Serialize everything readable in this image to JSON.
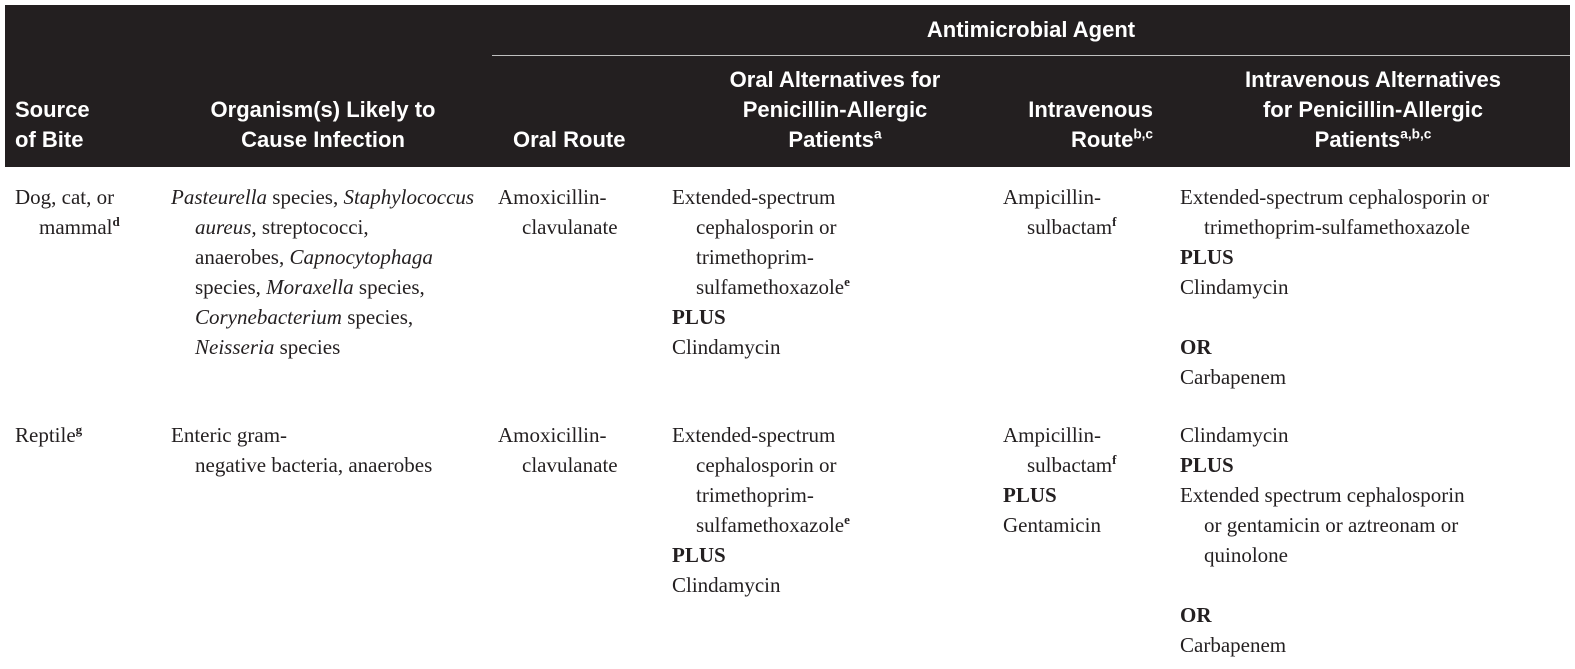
{
  "header": {
    "span_title": "Antimicrobial Agent",
    "source_line1": "Source",
    "source_line2": "of Bite",
    "organism_line1": "Organism(s) Likely to",
    "organism_line2": "Cause Infection",
    "oral_route": "Oral Route",
    "oral_alt_line1": "Oral Alternatives for",
    "oral_alt_line2": "Penicillin-Allergic",
    "oral_alt_line3": "Patients",
    "oral_alt_sup": "a",
    "iv_line1": "Intravenous",
    "iv_line2": "Route",
    "iv_sup": "b,c",
    "iv_alt_line1": "Intravenous Alternatives",
    "iv_alt_line2": "for Penicillin-Allergic",
    "iv_alt_line3": "Patients",
    "iv_alt_sup": "a,b,c"
  },
  "rows": [
    {
      "source_line1": "Dog, cat, or",
      "source_line2": "mammal",
      "source_sup": "d",
      "organisms": {
        "t1": "Pasteurella",
        "t2": " species, ",
        "t3": "Staphylococcus",
        "t4": "aureus,",
        "t5": " streptococci,",
        "t6": "anaerobes, ",
        "t7": "Capnocytophaga",
        "t8": "species, ",
        "t9": "Moraxella",
        "t10": " species,",
        "t11": "Corynebacterium",
        "t12": " species,",
        "t13": "Neisseria",
        "t14": " species"
      },
      "oral_line1": "Amoxicillin-",
      "oral_line2": "clavulanate",
      "oral_alt": {
        "l1": "Extended-spectrum",
        "l2": "cephalosporin or",
        "l3": "trimethoprim-",
        "l4": "sulfamethoxazole",
        "l4_sup": "e",
        "plus": "PLUS",
        "l5": "Clindamycin"
      },
      "iv": {
        "l1": "Ampicillin-",
        "l2": "sulbactam",
        "l2_sup": "f"
      },
      "iv_alt": {
        "l1": "Extended-spectrum cephalosporin or",
        "l2": "trimethoprim-sulfamethoxazole",
        "plus": "PLUS",
        "l3": "Clindamycin",
        "or": "OR",
        "l4": "Carbapenem"
      }
    },
    {
      "source_line1": "Reptile",
      "source_sup": "g",
      "organisms": {
        "l1": "Enteric gram-",
        "l2": "negative bacteria, anaerobes"
      },
      "oral_line1": "Amoxicillin-",
      "oral_line2": "clavulanate",
      "oral_alt": {
        "l1": "Extended-spectrum",
        "l2": "cephalosporin or",
        "l3": "trimethoprim-",
        "l4": "sulfamethoxazole",
        "l4_sup": "e",
        "plus": "PLUS",
        "l5": "Clindamycin"
      },
      "iv": {
        "l1": "Ampicillin-",
        "l2": "sulbactam",
        "l2_sup": "f",
        "plus": "PLUS",
        "l3": "Gentamicin"
      },
      "iv_alt": {
        "l1": "Clindamycin",
        "plus": "PLUS",
        "l2": "Extended spectrum cephalosporin",
        "l3": "or gentamicin or aztreonam or",
        "l4": "quinolone",
        "or": "OR",
        "l5": "Carbapenem"
      }
    }
  ]
}
